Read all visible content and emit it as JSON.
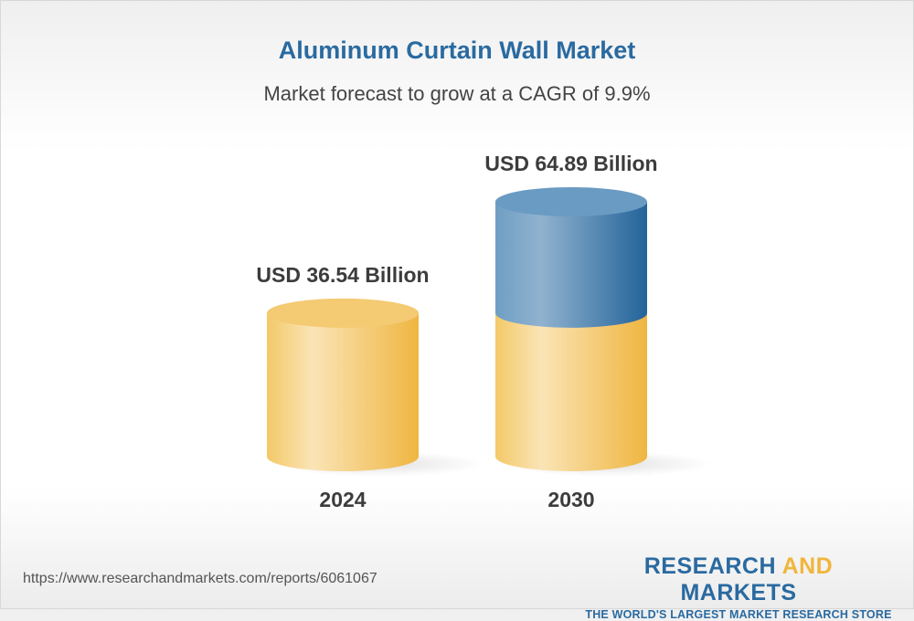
{
  "header": {
    "title": "Aluminum Curtain Wall Market",
    "subtitle": "Market forecast to grow at a CAGR of 9.9%"
  },
  "chart_data": {
    "type": "bar",
    "style": "3d-cylinder",
    "title": "Aluminum Curtain Wall Market",
    "subtitle": "Market forecast to grow at a CAGR of 9.9%",
    "categories": [
      "2024",
      "2030"
    ],
    "values": [
      36.54,
      64.89
    ],
    "data_labels": [
      "USD 36.54 Billion",
      "USD 64.89 Billion"
    ],
    "unit": "USD Billion",
    "grid": false,
    "colors": {
      "base": "#f0b63c",
      "growth": "#2a6aa0"
    }
  },
  "footer": {
    "url": "https://www.researchandmarkets.com/reports/6061067",
    "logo_word1": "RESEARCH",
    "logo_word2": "AND",
    "logo_word3": "MARKETS",
    "logo_tagline": "THE WORLD'S LARGEST MARKET RESEARCH STORE"
  }
}
